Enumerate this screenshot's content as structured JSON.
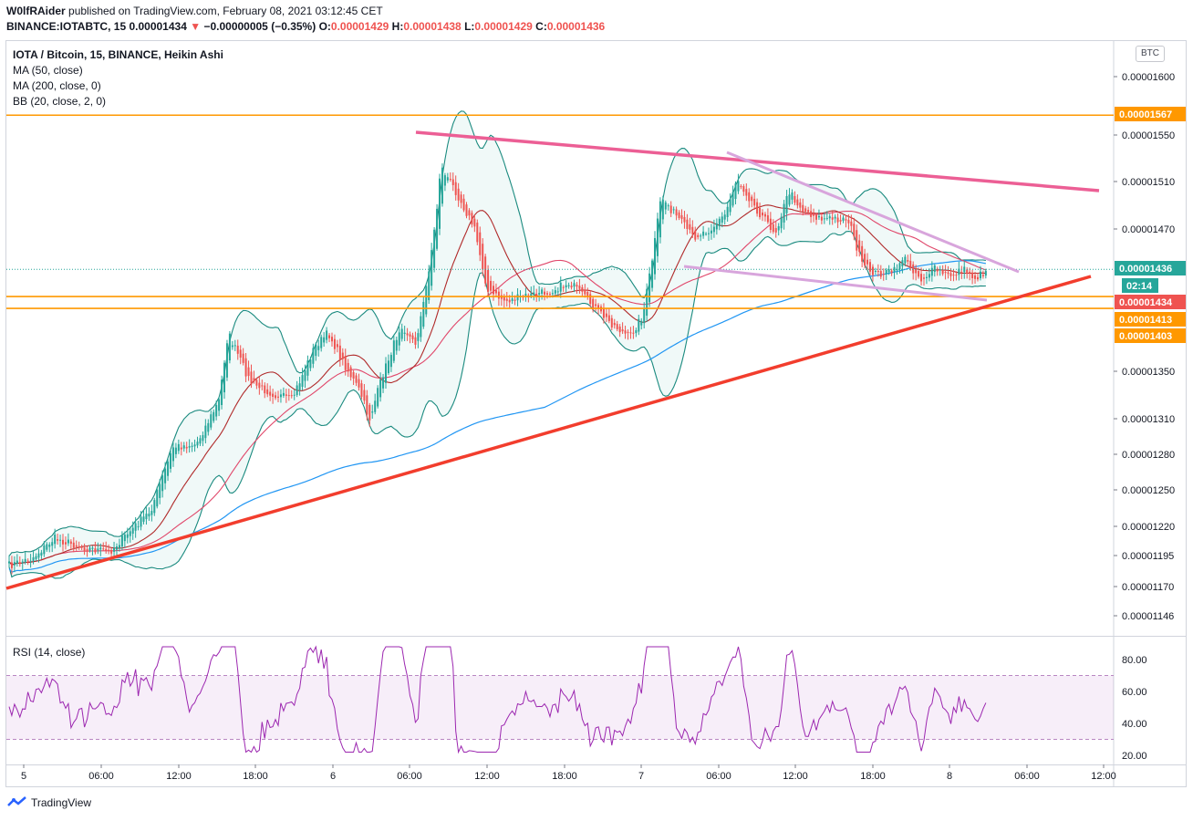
{
  "header": {
    "author": "W0lfRAider",
    "published_text": "published on TradingView.com, February 08, 2021 03:12:45 CET",
    "symbol": "BINANCE:IOTABTC, 15",
    "price": "0.00001434",
    "change": "−0.00000005 (−0.35%)",
    "o_label": "O:",
    "o_value": "0.00001429",
    "h_label": "H:",
    "h_value": "0.00001438",
    "l_label": "L:",
    "l_value": "0.00001429",
    "c_label": "C:",
    "c_value": "0.00001436"
  },
  "legend": {
    "title": "IOTA / Bitcoin, 15, BINANCE, Heikin Ashi",
    "ma50": "MA (50, close)",
    "ma200": "MA (200, close, 0)",
    "bb": "BB (20, close, 2, 0)"
  },
  "rsi": {
    "label": "RSI (14, close)"
  },
  "currency_badge": "BTC",
  "footer": {
    "brand": "TradingView"
  },
  "colors": {
    "up": "#26a69a",
    "down": "#ef5350",
    "ma50": "#b02a2a",
    "ma200": "#2196f3",
    "bb": "#1a8a7f",
    "bb_fill": "rgba(38,166,154,0.07)",
    "orange": "#ff9800",
    "pink": "#ec5f95",
    "red_trend": "#f23d2d",
    "lilac": "#d8a5dc",
    "rsi": "#9c27b0"
  },
  "chart_data": {
    "type": "candlestick",
    "y_ticks": [
      "0.00001600",
      "0.00001550",
      "0.00001510",
      "0.00001470",
      "0.00001350",
      "0.00001310",
      "0.00001280",
      "0.00001250",
      "0.00001220",
      "0.00001195",
      "0.00001170",
      "0.00001146"
    ],
    "x_ticks": [
      "5",
      "06:00",
      "12:00",
      "18:00",
      "6",
      "06:00",
      "12:00",
      "18:00",
      "7",
      "06:00",
      "12:00",
      "18:00",
      "8",
      "06:00",
      "12:00"
    ],
    "price_tags": [
      {
        "label": "0.00001567",
        "color": "#ff9800"
      },
      {
        "label": "0.00001436",
        "color": "#26a69a"
      },
      {
        "label": "02:14",
        "color": "#26a69a"
      },
      {
        "label": "0.00001434",
        "color": "#ef5350"
      },
      {
        "label": "0.00001413",
        "color": "#ff9800"
      },
      {
        "label": "0.00001403",
        "color": "#ff9800"
      }
    ],
    "horizontal_levels": [
      1.567e-05,
      1.413e-05,
      1.403e-05
    ],
    "rsi_ticks": [
      "80.00",
      "60.00",
      "40.00",
      "20.00"
    ],
    "rsi_band": [
      30,
      70
    ]
  }
}
